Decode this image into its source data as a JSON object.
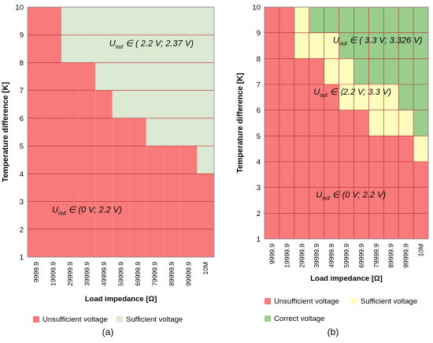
{
  "colors": {
    "unsufficient": "#F97A7B",
    "sufficient": "#DCEAD4",
    "sufficient_b": "#FEFDBE",
    "correct": "#9BCD8D",
    "grid": "#B4303A"
  },
  "chart_data": [
    {
      "type": "heatmap",
      "panel_label": "(a)",
      "title": "",
      "xlabel": "Load impedance [Ω]",
      "ylabel": "Temperature difference [K]",
      "x_categories": [
        "9999.9",
        "19999.9",
        "29999.9",
        "39999.9",
        "49999.9",
        "59999.9",
        "69999.9",
        "79999.9",
        "89999.9",
        "99999.9",
        "10M"
      ],
      "y_ticks": [
        "1",
        "2",
        "3",
        "4",
        "5",
        "6",
        "7",
        "8",
        "9",
        "10"
      ],
      "y_range": [
        1,
        10
      ],
      "legend": [
        {
          "label": "Unsufficient voltage",
          "color_key": "unsufficient"
        },
        {
          "label": "Sufficient voltage",
          "color_key": "sufficient"
        }
      ],
      "sufficient_voltage_min_dT_K": [
        10,
        10,
        8,
        8,
        7,
        6,
        6,
        5,
        5,
        5,
        4
      ],
      "annotations": [
        {
          "text_html": "U<tspan baseline-shift=\"sub\" font-size=\"7\">out</tspan> ∈ ( 2.2 V; 2.37 V)",
          "text": "Uout ∈ ( 2.2 V; 2.37 V)",
          "col": 7.3,
          "row": 8.6
        },
        {
          "text": "Uout ∈ (0 V; 2.2 V)",
          "col": 3.5,
          "row": 2.6
        }
      ]
    },
    {
      "type": "heatmap",
      "panel_label": "(b)",
      "title": "",
      "xlabel": "Load impedance [Ω]",
      "ylabel": "Temperature difference [K]",
      "x_categories": [
        "9999.9",
        "19999.9",
        "29999.9",
        "39999.9",
        "49999.9",
        "59999.9",
        "69999.9",
        "79999.9",
        "89999.9",
        "99999.9",
        "10M"
      ],
      "y_ticks": [
        "1",
        "2",
        "3",
        "4",
        "5",
        "6",
        "7",
        "8",
        "9",
        "10"
      ],
      "y_range": [
        1,
        10
      ],
      "legend": [
        {
          "label": "Unsufficient voltage",
          "color_key": "unsufficient"
        },
        {
          "label": "Sufficient voltage",
          "color_key": "sufficient_b"
        },
        {
          "label": "Correct voltage",
          "color_key": "correct"
        }
      ],
      "sufficient_voltage_min_dT_K": [
        10,
        10,
        8,
        8,
        7,
        6,
        6,
        5,
        5,
        5,
        4
      ],
      "correct_voltage_min_dT_K": [
        11,
        11,
        10,
        9,
        9,
        8,
        7,
        7,
        7,
        6,
        5
      ],
      "annotations": [
        {
          "text": "Uout ∈ ( 3.3 V; 3.326 V)",
          "col": 7.6,
          "row": 8.6
        },
        {
          "text": "Uout ∈ ⟨2.2 V; 3.3 V)",
          "col": 5.9,
          "row": 6.6
        },
        {
          "text": "Uout ∈ (0 V; 2.2 V)",
          "col": 5.8,
          "row": 2.6
        }
      ]
    }
  ]
}
